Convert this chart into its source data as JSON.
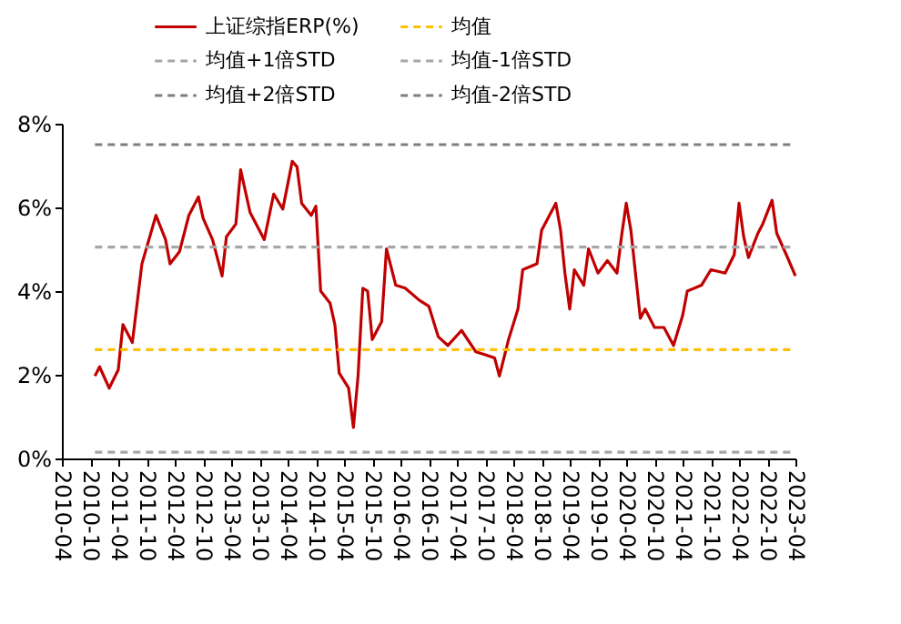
{
  "chart_data": {
    "type": "line",
    "xlim": [
      "2010-04",
      "2023-04"
    ],
    "xticks": [
      "2010-04",
      "2010-10",
      "2011-04",
      "2011-10",
      "2012-04",
      "2012-10",
      "2013-04",
      "2013-10",
      "2014-04",
      "2014-10",
      "2015-04",
      "2015-10",
      "2016-04",
      "2016-10",
      "2017-04",
      "2017-10",
      "2018-04",
      "2018-10",
      "2019-04",
      "2019-10",
      "2020-04",
      "2020-10",
      "2021-04",
      "2021-10",
      "2022-04",
      "2022-10",
      "2023-04"
    ],
    "ylim": [
      0,
      8
    ],
    "yticks": [
      {
        "value": 0,
        "label": "0%"
      },
      {
        "value": 2,
        "label": "2%"
      },
      {
        "value": 4,
        "label": "4%"
      },
      {
        "value": 6,
        "label": "6%"
      },
      {
        "value": 8,
        "label": "8%"
      }
    ],
    "grid": false,
    "legend": "top",
    "series": [
      {
        "name": "上证综指ERP(%)",
        "color": "#c00000",
        "line_style": "solid",
        "x": [
          "2010-11",
          "2010-12",
          "2011-02",
          "2011-04",
          "2011-05",
          "2011-07",
          "2011-08",
          "2011-09",
          "2011-12",
          "2012-02",
          "2012-03",
          "2012-05",
          "2012-07",
          "2012-09",
          "2012-10",
          "2012-12",
          "2013-02",
          "2013-03",
          "2013-05",
          "2013-06",
          "2013-08",
          "2013-11",
          "2014-01",
          "2014-03",
          "2014-05",
          "2014-06",
          "2014-07",
          "2014-09",
          "2014-10",
          "2014-11",
          "2015-01",
          "2015-02",
          "2015-03",
          "2015-05",
          "2015-06",
          "2015-07",
          "2015-08",
          "2015-09",
          "2015-10",
          "2015-12",
          "2016-01",
          "2016-03",
          "2016-05",
          "2016-08",
          "2016-10",
          "2016-12",
          "2017-02",
          "2017-05",
          "2017-08",
          "2017-10",
          "2017-12",
          "2018-01",
          "2018-03",
          "2018-05",
          "2018-06",
          "2018-09",
          "2018-10",
          "2019-01",
          "2019-02",
          "2019-03",
          "2019-04",
          "2019-05",
          "2019-07",
          "2019-08",
          "2019-10",
          "2019-12",
          "2020-02",
          "2020-03",
          "2020-04",
          "2020-05",
          "2020-07",
          "2020-08",
          "2020-10",
          "2020-12",
          "2021-02",
          "2021-04",
          "2021-05",
          "2021-08",
          "2021-10",
          "2022-01",
          "2022-03",
          "2022-04",
          "2022-05",
          "2022-06",
          "2022-08",
          "2022-09",
          "2022-11",
          "2022-12",
          "2023-02",
          "2023-04"
        ],
        "values": [
          1.97,
          2.19,
          1.68,
          2.12,
          3.2,
          2.77,
          3.71,
          4.65,
          5.81,
          5.23,
          4.65,
          4.94,
          5.81,
          6.25,
          5.74,
          5.23,
          4.36,
          5.3,
          5.6,
          6.9,
          5.88,
          5.23,
          6.32,
          5.96,
          7.1,
          6.97,
          6.1,
          5.81,
          6.03,
          4.0,
          3.71,
          3.2,
          2.04,
          1.68,
          0.74,
          1.97,
          4.07,
          4.0,
          2.84,
          3.27,
          5.01,
          4.14,
          4.07,
          3.78,
          3.64,
          2.91,
          2.7,
          3.06,
          2.55,
          2.48,
          2.4,
          1.97,
          2.84,
          3.57,
          4.51,
          4.65,
          5.45,
          6.1,
          5.45,
          4.43,
          3.57,
          4.51,
          4.14,
          5.01,
          4.43,
          4.73,
          4.43,
          5.3,
          6.1,
          5.45,
          3.35,
          3.57,
          3.13,
          3.13,
          2.7,
          3.42,
          4.0,
          4.14,
          4.51,
          4.43,
          4.87,
          6.1,
          5.3,
          4.8,
          5.38,
          5.6,
          6.17,
          5.38,
          4.87,
          4.36
        ]
      },
      {
        "name": "均值",
        "color": "#ffc000",
        "line_style": "dashed",
        "x": [
          "2010-11",
          "2023-04"
        ],
        "values": [
          2.6,
          2.6
        ]
      },
      {
        "name": "均值+1倍STD",
        "color": "#a6a6a6",
        "line_style": "dashed",
        "x": [
          "2010-11",
          "2023-04"
        ],
        "values": [
          5.05,
          5.05
        ]
      },
      {
        "name": "均值-1倍STD",
        "color": "#a6a6a6",
        "line_style": "dashed",
        "x": [
          "2010-11",
          "2023-04"
        ],
        "values": [
          0.15,
          0.15
        ]
      },
      {
        "name": "均值+2倍STD",
        "color": "#7f7f7f",
        "line_style": "dashed",
        "x": [
          "2010-11",
          "2023-04"
        ],
        "values": [
          7.5,
          7.5
        ]
      },
      {
        "name": "均值-2倍STD",
        "color": "#7f7f7f",
        "line_style": "dashed"
      }
    ]
  }
}
